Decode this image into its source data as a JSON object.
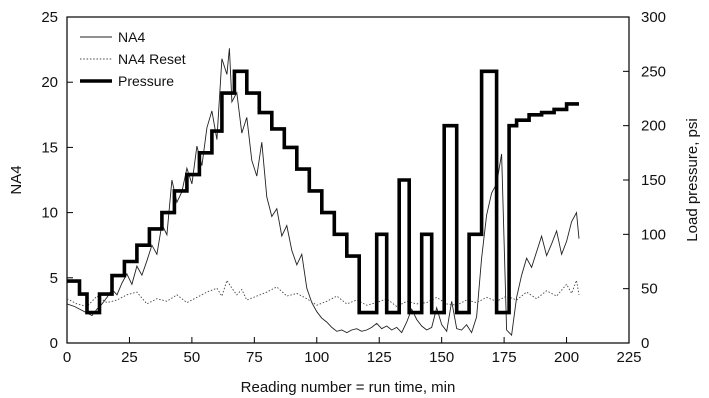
{
  "chart_data": {
    "type": "line",
    "title": "",
    "xlabel": "Reading number = run time, min",
    "ylabel": "NA4",
    "y2label": "Load pressure, psi",
    "xlim": [
      0,
      225
    ],
    "ylim": [
      0,
      25
    ],
    "y2lim": [
      0,
      300
    ],
    "x_ticks": [
      "0",
      "25",
      "50",
      "75",
      "100",
      "125",
      "150",
      "175",
      "200",
      "225"
    ],
    "y_ticks": [
      "0",
      "5",
      "10",
      "15",
      "20",
      "25"
    ],
    "y2_ticks": [
      "0",
      "50",
      "100",
      "150",
      "200",
      "250",
      "300"
    ],
    "grid": false,
    "legend_position": "top-left",
    "series": [
      {
        "name": "NA4",
        "axis": "left",
        "style": "thin-solid",
        "color": "#222222",
        "x": [
          0,
          3,
          6,
          8,
          10,
          12,
          14,
          16,
          18,
          20,
          22,
          24,
          26,
          28,
          30,
          32,
          34,
          36,
          38,
          40,
          42,
          44,
          46,
          48,
          50,
          52,
          54,
          56,
          58,
          60,
          62,
          64,
          65,
          66,
          68,
          70,
          72,
          74,
          76,
          78,
          80,
          82,
          84,
          86,
          88,
          90,
          92,
          94,
          96,
          98,
          100,
          102,
          104,
          106,
          108,
          110,
          112,
          114,
          116,
          118,
          120,
          122,
          124,
          126,
          128,
          130,
          132,
          134,
          136,
          138,
          140,
          142,
          144,
          146,
          148,
          150,
          152,
          154,
          156,
          158,
          160,
          162,
          164,
          166,
          168,
          170,
          172,
          174,
          176,
          178,
          180,
          182,
          184,
          186,
          188,
          190,
          192,
          194,
          196,
          198,
          200,
          202,
          204,
          205
        ],
        "y": [
          3.0,
          2.8,
          2.5,
          2.3,
          2.1,
          2.6,
          3.0,
          3.5,
          4.1,
          3.7,
          4.6,
          5.3,
          4.5,
          5.9,
          5.2,
          6.3,
          7.5,
          6.8,
          9.1,
          8.3,
          12.5,
          10.8,
          11.6,
          13.4,
          12.2,
          15.1,
          13.6,
          16.5,
          17.8,
          15.6,
          21.8,
          20.6,
          22.6,
          18.5,
          19.2,
          16.1,
          17.3,
          14.0,
          12.8,
          15.4,
          11.2,
          9.7,
          10.3,
          8.2,
          9.0,
          7.1,
          6.0,
          6.8,
          4.2,
          3.1,
          2.4,
          1.9,
          1.6,
          1.2,
          0.9,
          1.0,
          0.8,
          1.0,
          1.1,
          0.9,
          1.0,
          1.2,
          1.5,
          1.1,
          1.3,
          1.0,
          1.2,
          0.8,
          1.6,
          2.6,
          1.8,
          1.3,
          1.0,
          1.2,
          2.7,
          1.4,
          0.9,
          3.2,
          1.1,
          1.0,
          1.4,
          0.8,
          2.0,
          6.5,
          9.8,
          11.5,
          12.2,
          14.5,
          1.0,
          0.6,
          3.5,
          5.2,
          6.5,
          5.8,
          7.0,
          8.2,
          6.7,
          7.6,
          8.6,
          6.8,
          7.8,
          9.3,
          10.0,
          8.0
        ]
      },
      {
        "name": "NA4 Reset",
        "axis": "left",
        "style": "thin-dotted",
        "color": "#444444",
        "x": [
          0,
          4,
          8,
          12,
          16,
          20,
          24,
          28,
          32,
          36,
          40,
          44,
          48,
          52,
          56,
          60,
          62,
          64,
          66,
          68,
          70,
          72,
          76,
          80,
          84,
          88,
          92,
          96,
          100,
          104,
          108,
          112,
          116,
          120,
          124,
          128,
          132,
          136,
          140,
          144,
          148,
          152,
          156,
          160,
          164,
          168,
          172,
          176,
          180,
          184,
          188,
          192,
          196,
          200,
          202,
          204,
          205
        ],
        "y": [
          3.4,
          3.0,
          2.8,
          3.6,
          3.1,
          3.3,
          3.7,
          3.9,
          3.0,
          3.4,
          3.2,
          3.7,
          3.1,
          3.5,
          3.9,
          4.2,
          3.6,
          4.8,
          4.2,
          3.7,
          4.1,
          3.3,
          3.6,
          3.9,
          4.3,
          3.6,
          3.8,
          3.4,
          2.9,
          3.2,
          3.6,
          3.0,
          3.3,
          2.9,
          3.1,
          3.4,
          2.8,
          3.2,
          3.0,
          3.1,
          3.5,
          3.0,
          2.9,
          3.3,
          3.1,
          3.5,
          3.2,
          3.6,
          3.3,
          3.9,
          3.4,
          4.0,
          3.6,
          4.5,
          3.8,
          4.8,
          3.7
        ]
      },
      {
        "name": "Pressure",
        "axis": "right",
        "style": "thick-solid",
        "color": "#000000",
        "x": [
          0,
          5,
          5,
          8,
          8,
          13,
          13,
          18,
          18,
          23,
          23,
          28,
          28,
          33,
          33,
          38,
          38,
          43,
          43,
          48,
          48,
          53,
          53,
          58,
          58,
          62,
          62,
          67,
          67,
          72,
          72,
          77,
          77,
          82,
          82,
          87,
          87,
          92,
          92,
          97,
          97,
          102,
          102,
          107,
          107,
          112,
          112,
          117,
          117,
          124,
          124,
          128,
          128,
          133,
          133,
          137,
          137,
          142,
          142,
          146,
          146,
          151,
          151,
          156,
          156,
          161,
          161,
          166,
          166,
          172,
          172,
          177,
          177,
          180,
          180,
          185,
          185,
          190,
          190,
          195,
          195,
          200,
          200,
          205
        ],
        "y": [
          57,
          57,
          45,
          45,
          28,
          28,
          45,
          45,
          62,
          62,
          75,
          75,
          90,
          90,
          105,
          105,
          120,
          120,
          140,
          140,
          155,
          155,
          175,
          175,
          195,
          195,
          230,
          230,
          250,
          250,
          230,
          230,
          212,
          212,
          197,
          197,
          180,
          180,
          160,
          160,
          140,
          140,
          120,
          120,
          100,
          100,
          80,
          80,
          28,
          28,
          100,
          100,
          28,
          28,
          150,
          150,
          28,
          28,
          100,
          100,
          28,
          28,
          200,
          200,
          28,
          28,
          100,
          100,
          250,
          250,
          28,
          28,
          200,
          200,
          205,
          205,
          210,
          210,
          212,
          212,
          215,
          215,
          220,
          220
        ]
      }
    ]
  }
}
